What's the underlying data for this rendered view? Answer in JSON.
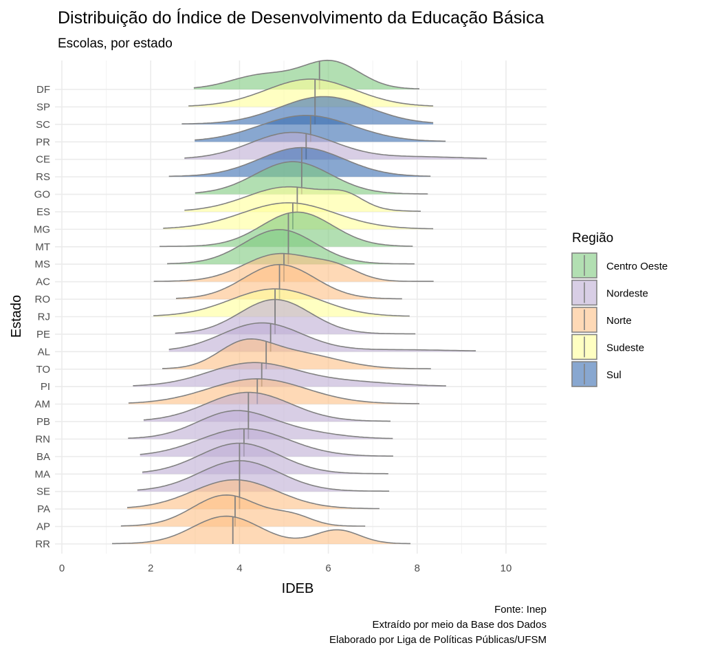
{
  "chart_data": {
    "type": "ridgeline",
    "title": "Distribuição do Índice de Desenvolvimento da Educação Básica",
    "subtitle": "Escolas, por estado",
    "xlabel": "IDEB",
    "ylabel": "Estado",
    "xlim": [
      0,
      10.8
    ],
    "xticks": [
      0,
      2,
      4,
      6,
      8,
      10
    ],
    "grid": true,
    "legend": {
      "title": "Região",
      "placement": "right",
      "entries": [
        {
          "name": "Centro Oeste",
          "color": "#7FC97F"
        },
        {
          "name": "Nordeste",
          "color": "#BEAED4"
        },
        {
          "name": "Norte",
          "color": "#FDC086"
        },
        {
          "name": "Sudeste",
          "color": "#FFFF99"
        },
        {
          "name": "Sul",
          "color": "#386CB0"
        }
      ]
    },
    "fill_alpha": 0.6,
    "states": [
      {
        "state": "DF",
        "region": "Centro Oeste",
        "min": 2.97,
        "max": 8.05,
        "median": 5.8,
        "peaks": [
          [
            6.05,
            0.65,
            0.65
          ],
          [
            4.5,
            0.7,
            0.35
          ]
        ]
      },
      {
        "state": "SP",
        "region": "Sudeste",
        "min": 2.85,
        "max": 8.36,
        "median": 5.7,
        "peaks": [
          [
            5.6,
            1.0,
            1
          ]
        ]
      },
      {
        "state": "SC",
        "region": "Sul",
        "min": 2.7,
        "max": 8.36,
        "median": 5.7,
        "peaks": [
          [
            5.9,
            1.0,
            1
          ]
        ]
      },
      {
        "state": "PR",
        "region": "Sul",
        "min": 2.99,
        "max": 8.64,
        "median": 5.6,
        "peaks": [
          [
            5.5,
            1.05,
            1
          ]
        ]
      },
      {
        "state": "CE",
        "region": "Nordeste",
        "min": 2.76,
        "max": 9.57,
        "median": 5.5,
        "peaks": [
          [
            5.2,
            0.95,
            0.92
          ],
          [
            8.0,
            1.0,
            0.08
          ]
        ]
      },
      {
        "state": "RS",
        "region": "Sul",
        "min": 2.41,
        "max": 8.3,
        "median": 5.4,
        "peaks": [
          [
            5.4,
            0.95,
            1
          ]
        ]
      },
      {
        "state": "GO",
        "region": "Centro Oeste",
        "min": 3.0,
        "max": 8.24,
        "median": 5.4,
        "peaks": [
          [
            5.2,
            0.85,
            1
          ]
        ]
      },
      {
        "state": "ES",
        "region": "Sudeste",
        "min": 2.76,
        "max": 8.08,
        "median": 5.3,
        "peaks": [
          [
            5.1,
            0.95,
            0.85
          ],
          [
            6.4,
            0.4,
            0.15
          ]
        ]
      },
      {
        "state": "MG",
        "region": "Sudeste",
        "min": 2.28,
        "max": 8.36,
        "median": 5.2,
        "peaks": [
          [
            5.1,
            1.05,
            1
          ]
        ]
      },
      {
        "state": "MT",
        "region": "Centro Oeste",
        "min": 2.2,
        "max": 7.9,
        "median": 5.1,
        "peaks": [
          [
            5.3,
            0.8,
            1
          ]
        ]
      },
      {
        "state": "MS",
        "region": "Centro Oeste",
        "min": 2.37,
        "max": 7.94,
        "median": 5.1,
        "peaks": [
          [
            4.9,
            0.8,
            1
          ]
        ]
      },
      {
        "state": "AC",
        "region": "Norte",
        "min": 2.07,
        "max": 8.37,
        "median": 5.0,
        "peaks": [
          [
            4.9,
            0.8,
            0.8
          ],
          [
            6.2,
            0.5,
            0.2
          ]
        ]
      },
      {
        "state": "RO",
        "region": "Norte",
        "min": 2.57,
        "max": 7.66,
        "median": 4.9,
        "peaks": [
          [
            4.9,
            0.8,
            1
          ]
        ]
      },
      {
        "state": "RJ",
        "region": "Sudeste",
        "min": 2.06,
        "max": 7.83,
        "median": 4.8,
        "peaks": [
          [
            4.8,
            1.0,
            1
          ]
        ]
      },
      {
        "state": "PE",
        "region": "Nordeste",
        "min": 2.55,
        "max": 7.96,
        "median": 4.8,
        "peaks": [
          [
            4.8,
            0.8,
            1
          ]
        ]
      },
      {
        "state": "AL",
        "region": "Nordeste",
        "min": 2.41,
        "max": 9.32,
        "median": 4.7,
        "peaks": [
          [
            4.5,
            0.9,
            0.93
          ],
          [
            7.5,
            1.2,
            0.07
          ]
        ]
      },
      {
        "state": "TO",
        "region": "Norte",
        "min": 2.26,
        "max": 8.31,
        "median": 4.6,
        "peaks": [
          [
            4.1,
            0.6,
            0.5
          ],
          [
            5.3,
            0.9,
            0.5
          ]
        ]
      },
      {
        "state": "PI",
        "region": "Nordeste",
        "min": 1.6,
        "max": 8.65,
        "median": 4.5,
        "peaks": [
          [
            4.3,
            1.0,
            0.85
          ],
          [
            6.5,
            1.0,
            0.15
          ]
        ]
      },
      {
        "state": "AM",
        "region": "Norte",
        "min": 1.5,
        "max": 8.05,
        "median": 4.4,
        "peaks": [
          [
            4.4,
            1.1,
            1
          ]
        ]
      },
      {
        "state": "PB",
        "region": "Nordeste",
        "min": 1.84,
        "max": 7.4,
        "median": 4.2,
        "peaks": [
          [
            4.2,
            0.95,
            1
          ]
        ]
      },
      {
        "state": "RN",
        "region": "Nordeste",
        "min": 1.49,
        "max": 7.45,
        "median": 4.2,
        "peaks": [
          [
            3.9,
            0.85,
            0.85
          ],
          [
            5.5,
            0.8,
            0.15
          ]
        ]
      },
      {
        "state": "BA",
        "region": "Nordeste",
        "min": 1.76,
        "max": 7.46,
        "median": 4.1,
        "peaks": [
          [
            4.1,
            1.0,
            1
          ]
        ]
      },
      {
        "state": "MA",
        "region": "Nordeste",
        "min": 1.81,
        "max": 7.35,
        "median": 4.0,
        "peaks": [
          [
            4.0,
            0.9,
            1
          ]
        ]
      },
      {
        "state": "SE",
        "region": "Nordeste",
        "min": 1.7,
        "max": 7.37,
        "median": 4.0,
        "peaks": [
          [
            4.0,
            0.9,
            1
          ]
        ]
      },
      {
        "state": "PA",
        "region": "Norte",
        "min": 1.47,
        "max": 7.15,
        "median": 4.0,
        "peaks": [
          [
            3.9,
            0.95,
            1
          ]
        ]
      },
      {
        "state": "AP",
        "region": "Norte",
        "min": 1.33,
        "max": 6.83,
        "median": 3.9,
        "peaks": [
          [
            3.7,
            0.75,
            0.85
          ],
          [
            5.2,
            0.45,
            0.15
          ]
        ]
      },
      {
        "state": "RR",
        "region": "Norte",
        "min": 1.13,
        "max": 7.85,
        "median": 3.85,
        "peaks": [
          [
            3.7,
            0.75,
            0.75
          ],
          [
            6.2,
            0.5,
            0.25
          ]
        ]
      }
    ]
  },
  "caption": [
    "Fonte: Inep",
    "Extraído por meio da Base dos Dados",
    "Elaborado por Liga de Políticas Públicas/UFSM"
  ]
}
